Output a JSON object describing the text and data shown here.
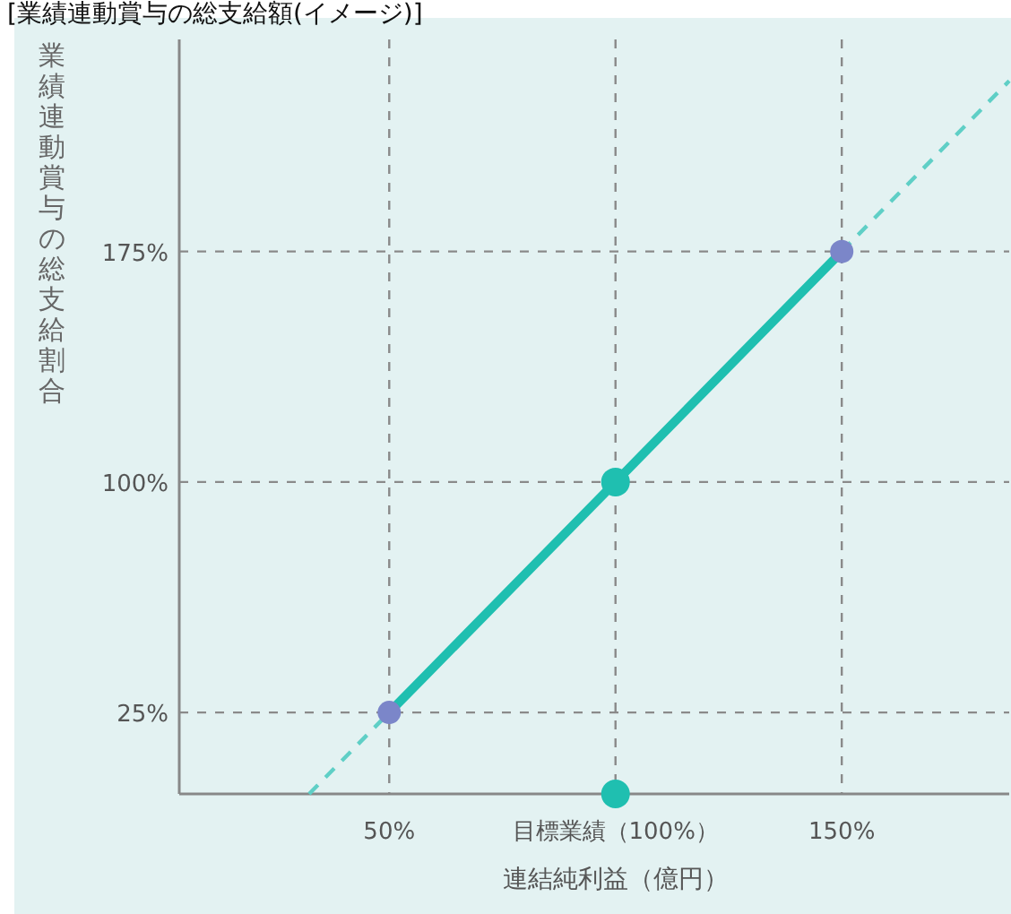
{
  "chart_data": {
    "type": "line",
    "title": "[業績連動賞与の総支給額(イメージ)]",
    "xlabel": "連結純利益（億円）",
    "ylabel": "業績連動賞与の総支給割合",
    "xlim": [
      3.6,
      187
    ],
    "ylim": [
      -1.5,
      244
    ],
    "xticks": [
      {
        "value": 50,
        "label": "50%"
      },
      {
        "value": 100,
        "label": "目標業績（100%）"
      },
      {
        "value": 150,
        "label": "150%"
      }
    ],
    "yticks": [
      {
        "value": 25,
        "label": "25%"
      },
      {
        "value": 100,
        "label": "100%"
      },
      {
        "value": 175,
        "label": "175%"
      }
    ],
    "grid": true,
    "series": [
      {
        "type": "line",
        "color": "#5fcfc6",
        "line_style": "dashed",
        "marker": "none",
        "x": [
          32.3,
          50,
          100,
          150,
          187
        ],
        "values": [
          -1.5,
          25,
          null,
          175,
          230.5
        ]
      },
      {
        "type": "line",
        "color": "#1fbfb0",
        "line_style": "solid",
        "marker": "circle",
        "colors": [
          "#7b86c9",
          "#1fbfb0",
          "#7b86c9"
        ],
        "x": [
          50,
          100,
          150
        ],
        "values": [
          25,
          100,
          175
        ]
      },
      {
        "type": "scatter",
        "color": "#1fbfb0",
        "marker": "circle",
        "x": [
          100
        ],
        "values": [
          -1.5
        ]
      }
    ]
  }
}
